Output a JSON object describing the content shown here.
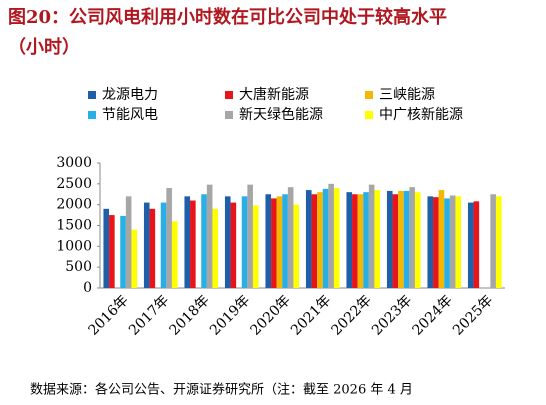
{
  "chart_data": {
    "type": "bar",
    "title": [
      "图20：公司风电利用小时数在可比公司中处于较高水平",
      "（小时）"
    ],
    "source": "数据来源：各公司公告、开源证券研究所（注：截至 2026 年 4 月",
    "categories": [
      "2016年",
      "2017年",
      "2018年",
      "2019年",
      "2020年",
      "2021年",
      "2022年",
      "2023年",
      "2024年",
      "2025年"
    ],
    "series": [
      {
        "name": "龙源电力",
        "color": "#1f5ea8",
        "values": [
          1900,
          2050,
          2200,
          2200,
          2250,
          2350,
          2300,
          2330,
          2200,
          2050
        ]
      },
      {
        "name": "大唐新能源",
        "color": "#e8141b",
        "values": [
          1750,
          1900,
          2100,
          2050,
          2150,
          2250,
          2250,
          2250,
          2180,
          2080
        ]
      },
      {
        "name": "三峡能源",
        "color": "#f5b800",
        "values": [
          null,
          null,
          null,
          null,
          2200,
          2300,
          2250,
          2330,
          2350,
          null
        ]
      },
      {
        "name": "节能风电",
        "color": "#28b0e6",
        "values": [
          1730,
          2050,
          2250,
          2200,
          2250,
          2380,
          2300,
          2330,
          2150,
          null
        ]
      },
      {
        "name": "新天绿色能源",
        "color": "#a6a6a6",
        "values": [
          2200,
          2400,
          2480,
          2480,
          2420,
          2500,
          2480,
          2420,
          2220,
          2250
        ]
      },
      {
        "name": "中广核新能源",
        "color": "#ffff00",
        "values": [
          1400,
          1600,
          1900,
          1980,
          2000,
          2400,
          2350,
          2300,
          2200,
          2200
        ]
      }
    ],
    "ylim": [
      0,
      3000
    ],
    "yticks": [
      0,
      500,
      1000,
      1500,
      2000,
      2500,
      3000
    ],
    "grid": false
  }
}
